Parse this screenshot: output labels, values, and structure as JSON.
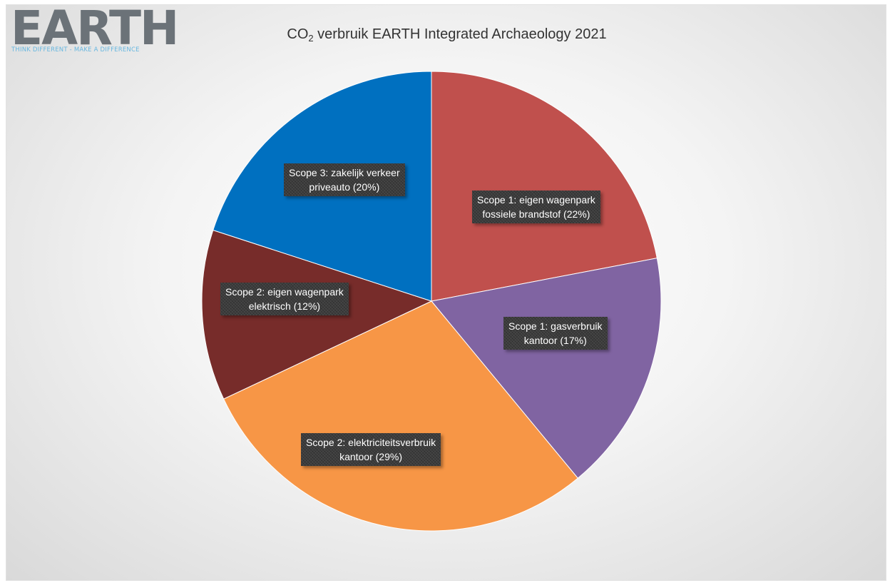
{
  "logo": {
    "name": "EARTH",
    "tagline": "THINK DIFFERENT - MAKE A DIFFERENCE"
  },
  "title": {
    "prefix": "CO",
    "subscript": "2",
    "suffix": " verbruik EARTH Integrated Archaeology 2021"
  },
  "chart_data": {
    "type": "pie",
    "title": "CO2 verbruik EARTH Integrated Archaeology 2021",
    "legend": "none",
    "slices": [
      {
        "label_line1": "Scope 1: eigen wagenpark",
        "label_line2": "fossiele brandstof (22%)",
        "value": 22,
        "color": "#c0504d"
      },
      {
        "label_line1": "Scope 1: gasverbruik",
        "label_line2": "kantoor (17%)",
        "value": 17,
        "color": "#8064a2"
      },
      {
        "label_line1": "Scope 2: elektriciteitsverbruik",
        "label_line2": "kantoor (29%)",
        "value": 29,
        "color": "#f79646"
      },
      {
        "label_line1": "Scope 2: eigen wagenpark",
        "label_line2": "elektrisch (12%)",
        "value": 12,
        "color": "#772c2a"
      },
      {
        "label_line1": "Scope 3: zakelijk verkeer",
        "label_line2": "priveauto (20%)",
        "value": 20,
        "color": "#0070c0"
      }
    ]
  }
}
